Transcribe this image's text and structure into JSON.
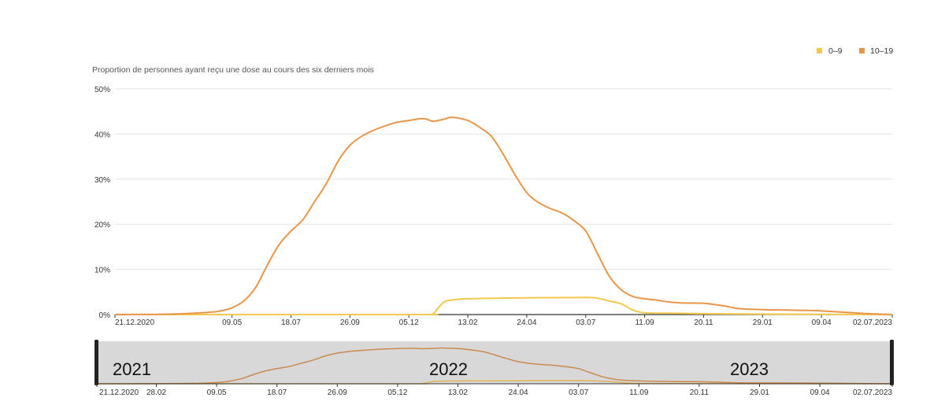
{
  "chart_data": {
    "type": "line",
    "title": "Proportion de personnes ayant reçu une dose au cours des six derniers mois",
    "y_unit": "%",
    "ylim": [
      0,
      50
    ],
    "yticks": [
      "0%",
      "10%",
      "20%",
      "30%",
      "40%",
      "50%"
    ],
    "xlim": [
      "2020-12-21",
      "2023-07-02"
    ],
    "xtick_labels": [
      {
        "date": "2020-12-21",
        "label": "21.12.2020"
      },
      {
        "date": "2021-05-09",
        "label": "09.05"
      },
      {
        "date": "2021-07-18",
        "label": "18.07"
      },
      {
        "date": "2021-09-26",
        "label": "26.09"
      },
      {
        "date": "2021-12-05",
        "label": "05.12"
      },
      {
        "date": "2022-02-13",
        "label": "13.02"
      },
      {
        "date": "2022-04-24",
        "label": "24.04"
      },
      {
        "date": "2022-07-03",
        "label": "03.07"
      },
      {
        "date": "2022-09-11",
        "label": "11.09"
      },
      {
        "date": "2022-11-20",
        "label": "20.11"
      },
      {
        "date": "2023-01-29",
        "label": "29.01"
      },
      {
        "date": "2023-04-09",
        "label": "09.04"
      },
      {
        "date": "2023-07-02",
        "label": "02.07.2023"
      }
    ],
    "grid": true,
    "legend_position": "top-right",
    "series": [
      {
        "name": "0–9",
        "color": "#f2c94c",
        "points": [
          [
            "2020-12-21",
            0
          ],
          [
            "2021-06-01",
            0
          ],
          [
            "2021-12-20",
            0
          ],
          [
            "2022-01-02",
            0.1
          ],
          [
            "2022-01-09",
            1.5
          ],
          [
            "2022-01-16",
            2.8
          ],
          [
            "2022-01-25",
            3.2
          ],
          [
            "2022-02-13",
            3.5
          ],
          [
            "2022-04-24",
            3.7
          ],
          [
            "2022-07-03",
            3.8
          ],
          [
            "2022-07-17",
            3.6
          ],
          [
            "2022-07-31",
            3.0
          ],
          [
            "2022-08-14",
            2.4
          ],
          [
            "2022-08-28",
            1.0
          ],
          [
            "2022-09-11",
            0.4
          ],
          [
            "2022-10-09",
            0.3
          ],
          [
            "2022-11-20",
            0.2
          ],
          [
            "2023-01-29",
            0.1
          ],
          [
            "2023-07-02",
            0
          ]
        ]
      },
      {
        "name": "10–19",
        "color": "#e8964a",
        "points": [
          [
            "2020-12-21",
            0
          ],
          [
            "2021-02-28",
            0.1
          ],
          [
            "2021-04-11",
            0.5
          ],
          [
            "2021-04-25",
            0.8
          ],
          [
            "2021-05-09",
            1.5
          ],
          [
            "2021-05-23",
            3.0
          ],
          [
            "2021-06-06",
            6.0
          ],
          [
            "2021-06-20",
            11.0
          ],
          [
            "2021-07-04",
            15.5
          ],
          [
            "2021-07-18",
            18.5
          ],
          [
            "2021-08-01",
            21.0
          ],
          [
            "2021-08-15",
            25.0
          ],
          [
            "2021-08-29",
            29.0
          ],
          [
            "2021-09-12",
            34.0
          ],
          [
            "2021-09-26",
            37.5
          ],
          [
            "2021-10-10",
            39.5
          ],
          [
            "2021-10-24",
            40.8
          ],
          [
            "2021-11-07",
            41.8
          ],
          [
            "2021-11-21",
            42.6
          ],
          [
            "2021-12-05",
            43.0
          ],
          [
            "2021-12-19",
            43.4
          ],
          [
            "2021-12-26",
            43.3
          ],
          [
            "2022-01-02",
            42.8
          ],
          [
            "2022-01-09",
            43.0
          ],
          [
            "2022-01-16",
            43.3
          ],
          [
            "2022-01-23",
            43.7
          ],
          [
            "2022-01-30",
            43.6
          ],
          [
            "2022-02-13",
            43.0
          ],
          [
            "2022-02-27",
            41.5
          ],
          [
            "2022-03-13",
            39.5
          ],
          [
            "2022-03-27",
            35.5
          ],
          [
            "2022-04-10",
            31.0
          ],
          [
            "2022-04-24",
            27.0
          ],
          [
            "2022-05-08",
            24.8
          ],
          [
            "2022-05-22",
            23.5
          ],
          [
            "2022-06-05",
            22.5
          ],
          [
            "2022-06-19",
            20.8
          ],
          [
            "2022-07-03",
            18.5
          ],
          [
            "2022-07-17",
            13.5
          ],
          [
            "2022-07-31",
            8.5
          ],
          [
            "2022-08-14",
            5.5
          ],
          [
            "2022-08-28",
            4.0
          ],
          [
            "2022-09-11",
            3.5
          ],
          [
            "2022-09-25",
            3.2
          ],
          [
            "2022-10-09",
            2.8
          ],
          [
            "2022-10-23",
            2.6
          ],
          [
            "2022-11-20",
            2.5
          ],
          [
            "2022-12-04",
            2.2
          ],
          [
            "2022-12-18",
            1.8
          ],
          [
            "2023-01-01",
            1.3
          ],
          [
            "2023-01-29",
            1.1
          ],
          [
            "2023-02-26",
            1.0
          ],
          [
            "2023-03-26",
            0.9
          ],
          [
            "2023-04-09",
            0.8
          ],
          [
            "2023-05-07",
            0.5
          ],
          [
            "2023-06-04",
            0.2
          ],
          [
            "2023-07-02",
            0
          ]
        ]
      }
    ]
  },
  "navigator": {
    "years": [
      "2021",
      "2022",
      "2023"
    ],
    "xtick_labels": [
      {
        "date": "2020-12-21",
        "label": "21.12.2020"
      },
      {
        "date": "2021-02-28",
        "label": "28.02"
      },
      {
        "date": "2021-05-09",
        "label": "09.05"
      },
      {
        "date": "2021-07-18",
        "label": "18.07"
      },
      {
        "date": "2021-09-26",
        "label": "26.09"
      },
      {
        "date": "2021-12-05",
        "label": "05.12"
      },
      {
        "date": "2022-02-13",
        "label": "13.02"
      },
      {
        "date": "2022-04-24",
        "label": "24.04"
      },
      {
        "date": "2022-07-03",
        "label": "03.07"
      },
      {
        "date": "2022-09-11",
        "label": "11.09"
      },
      {
        "date": "2022-11-20",
        "label": "20.11"
      },
      {
        "date": "2023-01-29",
        "label": "29.01"
      },
      {
        "date": "2023-04-09",
        "label": "09.04"
      },
      {
        "date": "2023-07-02",
        "label": "02.07.2023"
      }
    ],
    "background_color": "#d8d8d8",
    "handle_color": "#222222"
  }
}
